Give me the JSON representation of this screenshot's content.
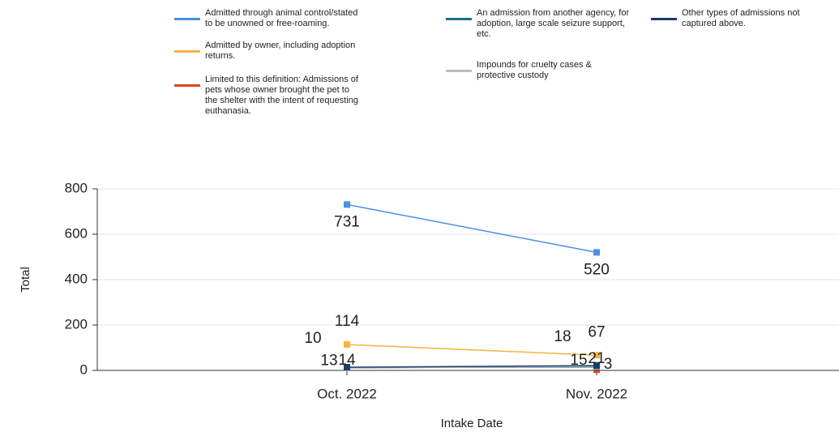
{
  "chart_data": {
    "type": "line",
    "x_label": "Intake Date",
    "y_label": "Total",
    "categories": [
      "Oct. 2022",
      "Nov. 2022"
    ],
    "series": [
      {
        "name": "Admitted through animal control/stated to be unowned or free-roaming.",
        "color": "#4a90e2",
        "values": [
          731,
          520
        ]
      },
      {
        "name": "Admitted by owner, including adoption returns.",
        "color": "#f5b342",
        "values": [
          114,
          67
        ]
      },
      {
        "name": "Limited to this definition: Admissions of pets whose owner brought the pet to the shelter with the intent of requesting euthanasia.",
        "color": "#e0441b",
        "values": [
          null,
          3
        ]
      },
      {
        "name": "An admission from another agency, for adoption, large scale seizure support, etc.",
        "color": "#1f6e8c",
        "values": [
          13,
          15
        ]
      },
      {
        "name": "Impounds for cruelty cases & protective custody",
        "color": "#bdbdbd",
        "values": [
          10,
          18
        ]
      },
      {
        "name": "Other types of admissions not captured above.",
        "color": "#1c3a6b",
        "values": [
          14,
          21
        ]
      }
    ],
    "ylim": [
      0,
      800
    ],
    "yticks": [
      0,
      200,
      400,
      600,
      800
    ],
    "grid": true
  }
}
